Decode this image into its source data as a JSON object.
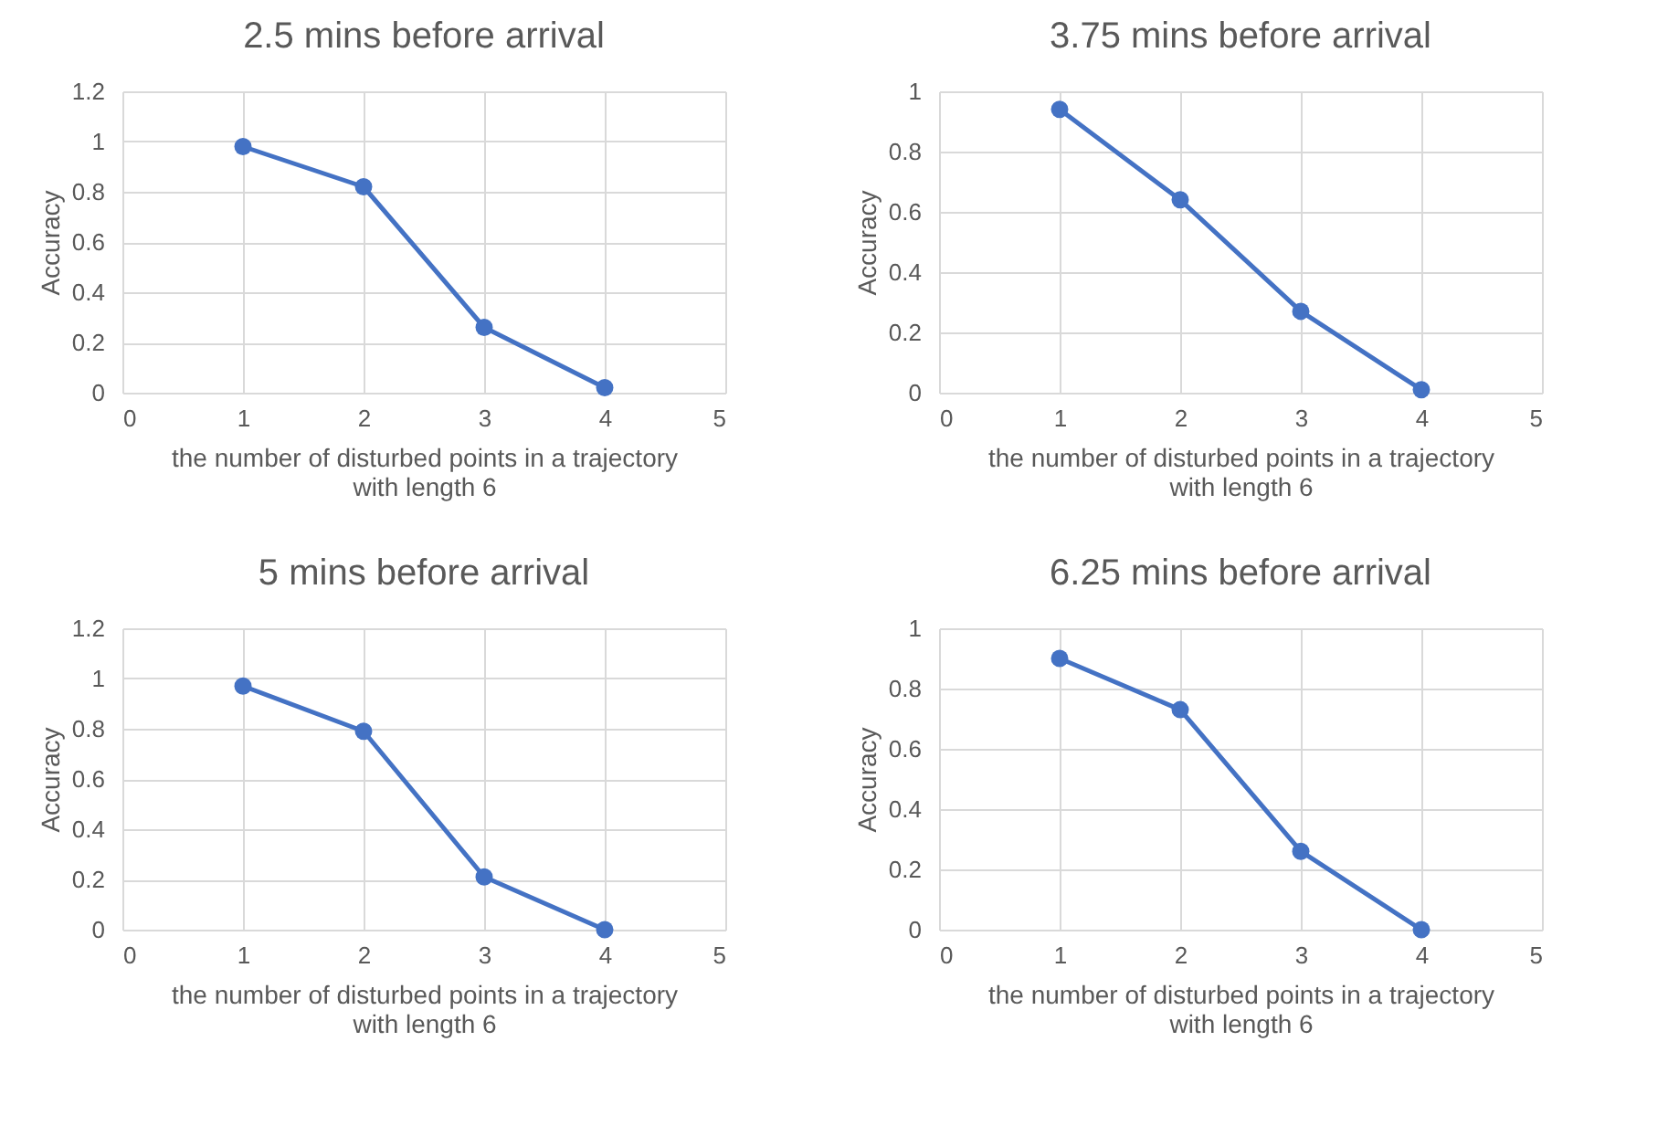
{
  "chart_data": [
    {
      "type": "line",
      "title": "2.5 mins before arrival",
      "xlabel": "the number of disturbed points in a trajectory\nwith length 6",
      "ylabel": "Accuracy",
      "x": [
        1,
        2,
        3,
        4
      ],
      "series": [
        {
          "color": "#4472c4",
          "values": [
            0.98,
            0.82,
            0.26,
            0.02
          ]
        }
      ],
      "xlim": [
        0,
        5
      ],
      "xticks": [
        0,
        1,
        2,
        3,
        4,
        5
      ],
      "ylim": [
        0,
        1.2
      ],
      "yticks": [
        0,
        0.2,
        0.4,
        0.6,
        0.8,
        1,
        1.2
      ],
      "grid": true,
      "marker": "circle",
      "line_style": "solid"
    },
    {
      "type": "line",
      "title": "3.75 mins before arrival",
      "xlabel": "the number of disturbed points in a trajectory\nwith length 6",
      "ylabel": "Accuracy",
      "x": [
        1,
        2,
        3,
        4
      ],
      "series": [
        {
          "color": "#4472c4",
          "values": [
            0.94,
            0.64,
            0.27,
            0.01
          ]
        }
      ],
      "xlim": [
        0,
        5
      ],
      "xticks": [
        0,
        1,
        2,
        3,
        4,
        5
      ],
      "ylim": [
        0,
        1
      ],
      "yticks": [
        0,
        0.2,
        0.4,
        0.6,
        0.8,
        1
      ],
      "grid": true,
      "marker": "circle",
      "line_style": "solid"
    },
    {
      "type": "line",
      "title": "5 mins before arrival",
      "xlabel": "the number of disturbed points in a trajectory\nwith length 6",
      "ylabel": "Accuracy",
      "x": [
        1,
        2,
        3,
        4
      ],
      "series": [
        {
          "color": "#4472c4",
          "values": [
            0.97,
            0.79,
            0.21,
            0.0
          ]
        }
      ],
      "xlim": [
        0,
        5
      ],
      "xticks": [
        0,
        1,
        2,
        3,
        4,
        5
      ],
      "ylim": [
        0,
        1.2
      ],
      "yticks": [
        0,
        0.2,
        0.4,
        0.6,
        0.8,
        1,
        1.2
      ],
      "grid": true,
      "marker": "circle",
      "line_style": "solid"
    },
    {
      "type": "line",
      "title": "6.25 mins before arrival",
      "xlabel": "the number of disturbed points in a trajectory\nwith length 6",
      "ylabel": "Accuracy",
      "x": [
        1,
        2,
        3,
        4
      ],
      "series": [
        {
          "color": "#4472c4",
          "values": [
            0.9,
            0.73,
            0.26,
            0.0
          ]
        }
      ],
      "xlim": [
        0,
        5
      ],
      "xticks": [
        0,
        1,
        2,
        3,
        4,
        5
      ],
      "ylim": [
        0,
        1
      ],
      "yticks": [
        0,
        0.2,
        0.4,
        0.6,
        0.8,
        1
      ],
      "grid": true,
      "marker": "circle",
      "line_style": "solid"
    }
  ]
}
